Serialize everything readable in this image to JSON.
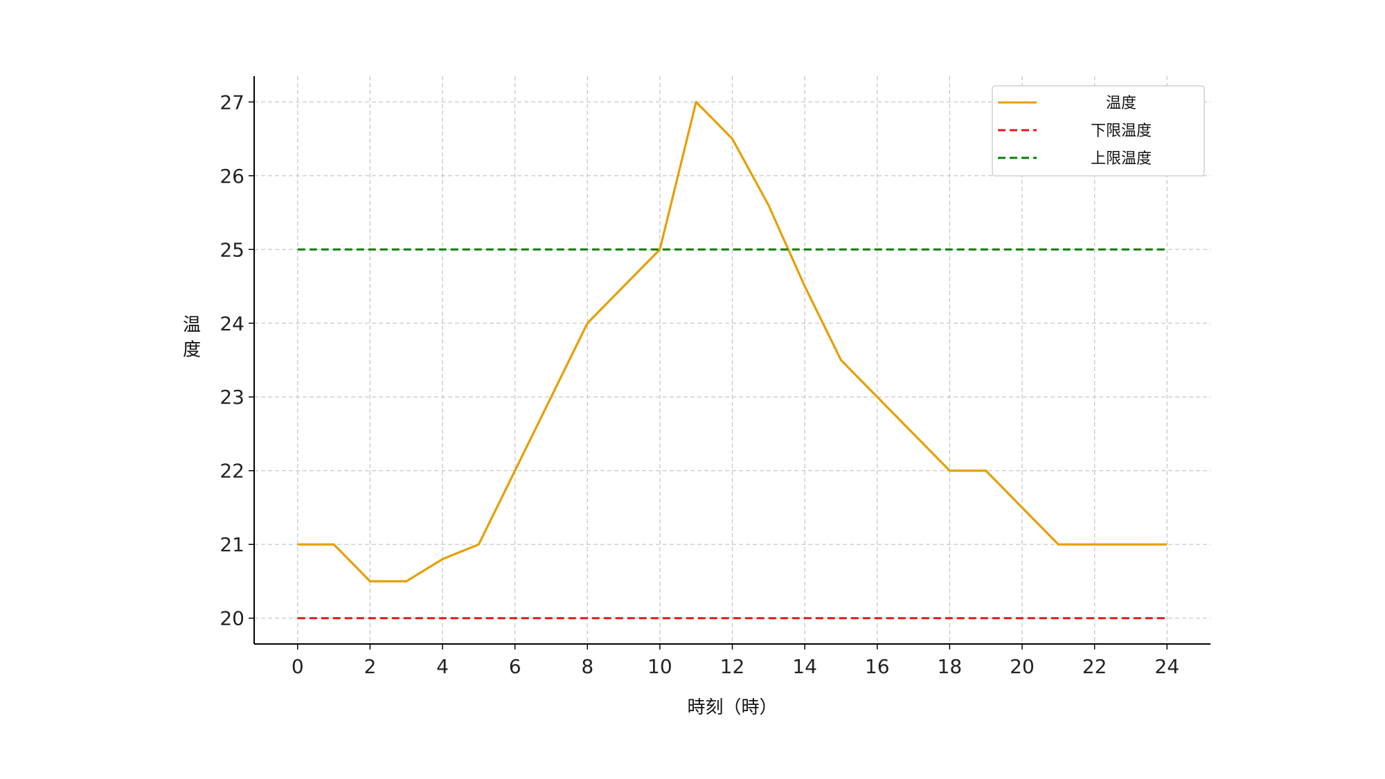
{
  "chart_data": {
    "type": "line",
    "title": "",
    "xlabel": "時刻（時）",
    "ylabel": "温度",
    "xlim": [
      -1.2,
      25.2
    ],
    "ylim": [
      19.65,
      27.35
    ],
    "xticks": [
      0,
      2,
      4,
      6,
      8,
      10,
      12,
      14,
      16,
      18,
      20,
      22,
      24
    ],
    "yticks": [
      20,
      21,
      22,
      23,
      24,
      25,
      26,
      27
    ],
    "grid": true,
    "legend_position": "top-right",
    "x": [
      0,
      1,
      2,
      3,
      4,
      5,
      6,
      7,
      8,
      9,
      10,
      11,
      12,
      13,
      14,
      15,
      16,
      17,
      18,
      19,
      20,
      21,
      22,
      23,
      24
    ],
    "series": [
      {
        "name": "温度",
        "style": "solid",
        "color": "#E69F00",
        "values": [
          21,
          21,
          20.5,
          20.5,
          20.8,
          21,
          22,
          23,
          24,
          24.5,
          25,
          27,
          26.5,
          25.6,
          24.5,
          23.5,
          23,
          22.5,
          22,
          22,
          21.5,
          21,
          21,
          21,
          21
        ]
      },
      {
        "name": "下限温度",
        "style": "dashed",
        "color": "#E8161B",
        "values": [
          20,
          20,
          20,
          20,
          20,
          20,
          20,
          20,
          20,
          20,
          20,
          20,
          20,
          20,
          20,
          20,
          20,
          20,
          20,
          20,
          20,
          20,
          20,
          20,
          20
        ]
      },
      {
        "name": "上限温度",
        "style": "dashed",
        "color": "#0A7D0A",
        "values": [
          25,
          25,
          25,
          25,
          25,
          25,
          25,
          25,
          25,
          25,
          25,
          25,
          25,
          25,
          25,
          25,
          25,
          25,
          25,
          25,
          25,
          25,
          25,
          25,
          25
        ]
      }
    ]
  }
}
